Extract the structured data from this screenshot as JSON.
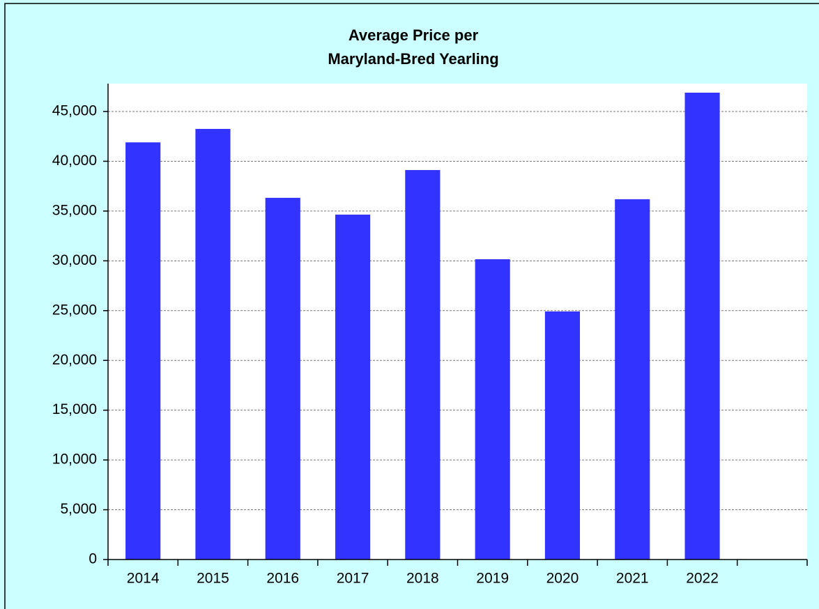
{
  "chart_data": {
    "type": "bar",
    "title": [
      "Average Price per",
      "Maryland-Bred Yearling"
    ],
    "categories": [
      "2014",
      "2015",
      "2016",
      "2017",
      "2018",
      "2019",
      "2020",
      "2021",
      "2022",
      null
    ],
    "values": [
      41900,
      43250,
      36330,
      34640,
      39120,
      30160,
      24920,
      36190,
      46890,
      null
    ],
    "color": "#3333ff",
    "ylim": [
      0,
      47800
    ],
    "yticks": [
      0,
      {
        "value": 5000,
        "label": "5,000"
      },
      {
        "value": 10000,
        "label": "10,000"
      },
      {
        "value": 15000,
        "label": "15,000"
      },
      {
        "value": 20000,
        "label": "20,000"
      },
      {
        "value": 25000,
        "label": "25,000"
      },
      {
        "value": 30000,
        "label": "30,000"
      },
      {
        "value": 35000,
        "label": "35,000"
      },
      {
        "value": 40000,
        "label": "40,000"
      },
      {
        "value": 45000,
        "label": "45,000"
      }
    ],
    "grid": true
  }
}
